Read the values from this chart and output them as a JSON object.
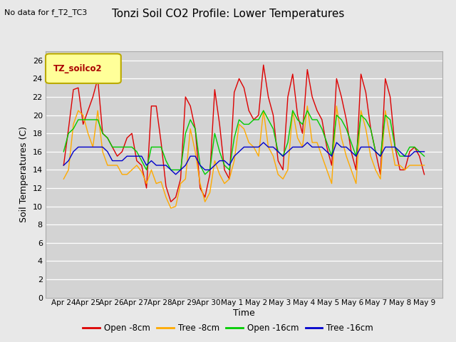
{
  "title": "Tonzi Soil CO2 Profile: Lower Temperatures",
  "subtitle": "No data for f_T2_TC3",
  "xlabel": "Time",
  "ylabel": "Soil Temperatures (C)",
  "ylim": [
    0,
    27
  ],
  "yticks": [
    0,
    2,
    4,
    6,
    8,
    10,
    12,
    14,
    16,
    18,
    20,
    22,
    24,
    26
  ],
  "x_labels": [
    "Apr 24",
    "Apr 25",
    "Apr 26",
    "Apr 27",
    "Apr 28",
    "Apr 29",
    "Apr 30",
    "May 1",
    "May 2",
    "May 3",
    "May 4",
    "May 5",
    "May 6",
    "May 7",
    "May 8",
    "May 9"
  ],
  "legend_box_label": "TZ_soilco2",
  "legend_box_color": "#ffff99",
  "legend_box_edge": "#bbaa00",
  "outer_bg": "#e8e8e8",
  "plot_bg": "#d3d3d3",
  "grid_color": "#c0c0c0",
  "colors": {
    "open_8": "#dd0000",
    "tree_8": "#ffaa00",
    "open_16": "#00cc00",
    "tree_16": "#0000cc"
  },
  "series_labels": [
    "Open -8cm",
    "Tree -8cm",
    "Open -16cm",
    "Tree -16cm"
  ],
  "open_8cm": [
    14.5,
    18.5,
    22.8,
    23.0,
    19.0,
    20.5,
    22.0,
    24.0,
    18.0,
    17.5,
    16.5,
    15.5,
    16.0,
    17.5,
    18.0,
    15.0,
    14.5,
    12.0,
    21.0,
    21.0,
    17.0,
    12.2,
    10.5,
    11.0,
    13.0,
    22.0,
    21.0,
    18.5,
    12.0,
    11.0,
    13.5,
    22.8,
    19.0,
    14.0,
    13.0,
    22.5,
    24.0,
    23.0,
    20.5,
    19.5,
    20.0,
    25.5,
    22.0,
    20.0,
    15.0,
    14.0,
    22.0,
    24.5,
    20.0,
    18.0,
    25.0,
    22.0,
    20.5,
    19.5,
    16.5,
    14.5,
    24.0,
    22.0,
    19.5,
    16.0,
    14.0,
    24.5,
    22.5,
    18.5,
    16.0,
    13.5,
    24.0,
    22.0,
    16.5,
    14.0,
    14.0,
    16.0,
    16.5,
    15.5,
    13.5
  ],
  "tree_8cm": [
    13.0,
    14.0,
    19.0,
    20.5,
    20.0,
    18.0,
    16.5,
    20.5,
    16.0,
    14.5,
    14.5,
    14.5,
    13.5,
    13.5,
    14.0,
    14.5,
    13.8,
    12.5,
    14.0,
    12.5,
    12.7,
    11.0,
    9.8,
    10.0,
    12.5,
    13.0,
    18.5,
    16.0,
    12.5,
    10.5,
    11.5,
    15.0,
    13.5,
    12.5,
    13.0,
    15.0,
    19.0,
    18.5,
    17.0,
    16.5,
    15.5,
    20.5,
    16.5,
    15.5,
    13.5,
    13.0,
    14.0,
    20.5,
    17.5,
    16.5,
    21.0,
    17.0,
    17.0,
    15.5,
    14.0,
    12.5,
    21.0,
    17.5,
    15.5,
    14.0,
    12.5,
    20.5,
    18.5,
    15.5,
    14.0,
    13.0,
    20.5,
    17.5,
    14.5,
    14.5,
    14.0,
    14.5,
    14.5,
    14.5,
    14.5
  ],
  "open_16cm": [
    16.0,
    18.0,
    18.5,
    19.5,
    19.5,
    19.5,
    19.5,
    19.5,
    18.0,
    17.5,
    16.5,
    16.5,
    16.5,
    16.5,
    16.5,
    16.0,
    15.0,
    14.0,
    16.5,
    16.5,
    16.5,
    15.0,
    14.0,
    14.0,
    14.0,
    18.0,
    19.5,
    18.5,
    14.5,
    13.5,
    14.0,
    18.0,
    16.0,
    14.5,
    14.0,
    17.5,
    19.5,
    19.0,
    19.0,
    19.5,
    19.5,
    20.5,
    19.5,
    18.5,
    16.0,
    15.5,
    17.0,
    20.5,
    19.5,
    19.0,
    20.5,
    19.5,
    19.5,
    18.5,
    17.0,
    15.5,
    20.0,
    19.5,
    18.5,
    17.0,
    15.5,
    20.0,
    19.5,
    18.5,
    16.0,
    15.5,
    20.0,
    19.5,
    16.5,
    15.5,
    15.5,
    16.5,
    16.5,
    16.0,
    15.5
  ],
  "tree_16cm": [
    14.5,
    15.0,
    16.0,
    16.5,
    16.5,
    16.5,
    16.5,
    16.5,
    16.5,
    16.0,
    15.0,
    15.0,
    15.0,
    15.5,
    15.5,
    15.5,
    15.5,
    14.5,
    15.0,
    14.5,
    14.5,
    14.5,
    14.0,
    13.5,
    14.0,
    14.5,
    15.5,
    15.5,
    14.5,
    14.0,
    14.0,
    14.5,
    15.0,
    15.0,
    14.5,
    15.5,
    16.0,
    16.5,
    16.5,
    16.5,
    16.5,
    17.0,
    16.5,
    16.5,
    16.0,
    15.5,
    16.0,
    16.5,
    16.5,
    16.5,
    17.0,
    16.5,
    16.5,
    16.5,
    16.0,
    15.5,
    17.0,
    16.5,
    16.5,
    16.0,
    15.5,
    16.5,
    16.5,
    16.5,
    16.0,
    15.5,
    16.5,
    16.5,
    16.5,
    16.0,
    15.5,
    15.5,
    16.0,
    16.0,
    16.0
  ]
}
